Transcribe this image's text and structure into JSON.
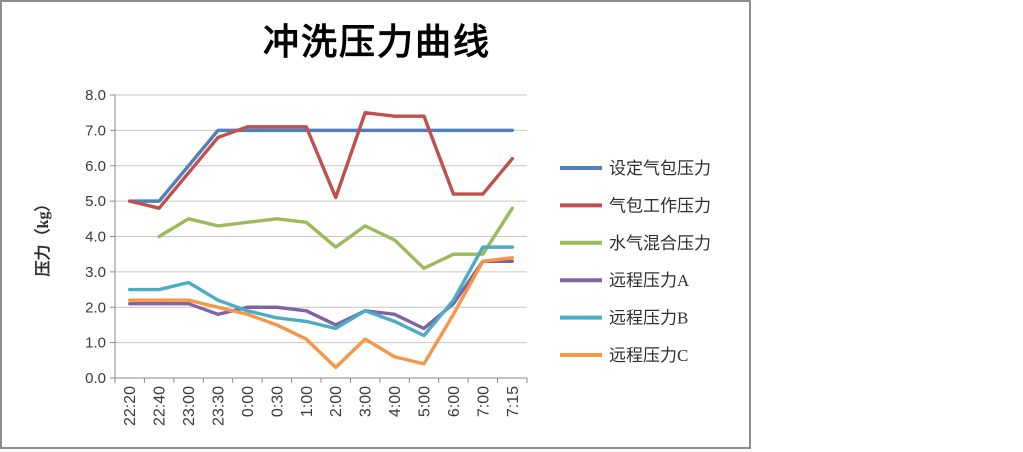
{
  "chart_data": {
    "type": "line",
    "title": "冲洗压力曲线",
    "xlabel": "",
    "ylabel": "压力（kg）",
    "ylim": [
      0,
      8
    ],
    "ytick_step": 1.0,
    "ytick_labels": [
      "0.0",
      "1.0",
      "2.0",
      "3.0",
      "4.0",
      "5.0",
      "6.0",
      "7.0",
      "8.0"
    ],
    "grid": true,
    "legend_position": "right",
    "categories": [
      "22:20",
      "22:40",
      "23:00",
      "23:30",
      "0:00",
      "0:30",
      "1:00",
      "2:00",
      "3:00",
      "4:00",
      "5:00",
      "6:00",
      "7:00",
      "7:15"
    ],
    "series": [
      {
        "name": "设定气包压力",
        "color": "#4F81BD",
        "values": [
          5.0,
          5.0,
          6.0,
          7.0,
          7.0,
          7.0,
          7.0,
          7.0,
          7.0,
          7.0,
          7.0,
          7.0,
          7.0,
          7.0
        ]
      },
      {
        "name": "气包工作压力",
        "color": "#C0504D",
        "values": [
          5.0,
          4.8,
          5.8,
          6.8,
          7.1,
          7.1,
          7.1,
          5.1,
          7.5,
          7.4,
          7.4,
          5.2,
          5.2,
          6.2
        ]
      },
      {
        "name": "水气混合压力",
        "color": "#9BBB59",
        "values": [
          null,
          4.0,
          4.5,
          4.3,
          4.4,
          4.5,
          4.4,
          3.7,
          4.3,
          3.9,
          3.1,
          3.5,
          3.5,
          4.8
        ]
      },
      {
        "name": "远程压力A",
        "color": "#8064A2",
        "values": [
          2.1,
          2.1,
          2.1,
          1.8,
          2.0,
          2.0,
          1.9,
          1.5,
          1.9,
          1.8,
          1.4,
          2.1,
          3.3,
          3.3
        ]
      },
      {
        "name": "远程压力B",
        "color": "#4BACC6",
        "values": [
          2.5,
          2.5,
          2.7,
          2.2,
          1.9,
          1.7,
          1.6,
          1.4,
          1.9,
          1.6,
          1.2,
          2.2,
          3.7,
          3.7
        ]
      },
      {
        "name": "远程压力C",
        "color": "#F79646",
        "values": [
          2.2,
          2.2,
          2.2,
          2.0,
          1.8,
          1.5,
          1.1,
          0.3,
          1.1,
          0.6,
          0.4,
          1.8,
          3.3,
          3.4
        ]
      }
    ]
  },
  "colors": {
    "frame_border": "#8C8C8C",
    "axis": "#898989",
    "gridline": "#C6C6C6",
    "tick_text": "#3A3A3A",
    "background": "#FFFFFF"
  }
}
